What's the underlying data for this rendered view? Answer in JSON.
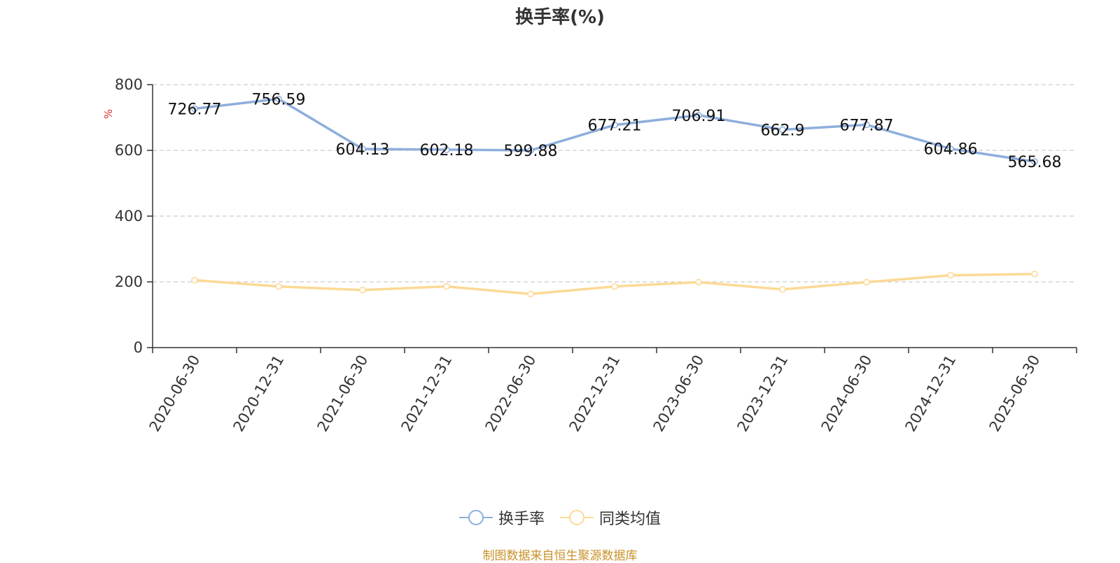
{
  "source_note": "制图数据来自恒生聚源数据库",
  "colors": {
    "series1": "#8eaedc",
    "series2": "#fcd995",
    "axis": "#333333",
    "grid": "#cccccc",
    "unit": "#e03030",
    "source": "#c8922a"
  },
  "chart_data": {
    "type": "line",
    "title": "换手率(%)",
    "ylabel": "%",
    "xlabel": "",
    "ylim": [
      0,
      800
    ],
    "yticks": [
      0,
      200,
      400,
      600,
      800
    ],
    "grid": true,
    "legend_position": "bottom",
    "categories": [
      "2020-06-30",
      "2020-12-31",
      "2021-06-30",
      "2021-12-31",
      "2022-06-30",
      "2022-12-31",
      "2023-06-30",
      "2023-12-31",
      "2024-06-30",
      "2024-12-31",
      "2025-06-30"
    ],
    "series": [
      {
        "name": "换手率",
        "values": [
          726.77,
          756.59,
          604.13,
          602.18,
          599.88,
          677.21,
          706.91,
          662.9,
          677.87,
          604.86,
          565.68
        ],
        "labels": [
          "726.77",
          "756.59",
          "604.13",
          "602.18",
          "599.88",
          "677.21",
          "706.91",
          "662.9",
          "677.87",
          "604.86",
          "565.68"
        ],
        "show_labels": true
      },
      {
        "name": "同类均值",
        "values": [
          205,
          186,
          175,
          186,
          163,
          186,
          199,
          177,
          199,
          220,
          224
        ],
        "show_labels": false
      }
    ]
  }
}
